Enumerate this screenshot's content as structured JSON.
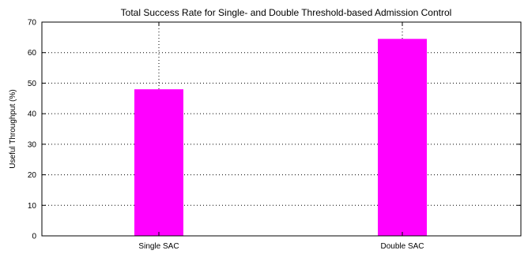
{
  "chart_data": {
    "type": "bar",
    "title": "Total Success Rate for Single- and Double Threshold-based Admission Control",
    "xlabel": "",
    "ylabel": "Useful Throughput (%)",
    "categories": [
      "Single SAC",
      "Double SAC"
    ],
    "values": [
      48,
      64.5
    ],
    "ylim": [
      0,
      70
    ],
    "yticks": [
      "0",
      "10",
      "20",
      "30",
      "40",
      "50",
      "60",
      "70"
    ],
    "grid": true,
    "bar_color": "#ff00ff"
  }
}
